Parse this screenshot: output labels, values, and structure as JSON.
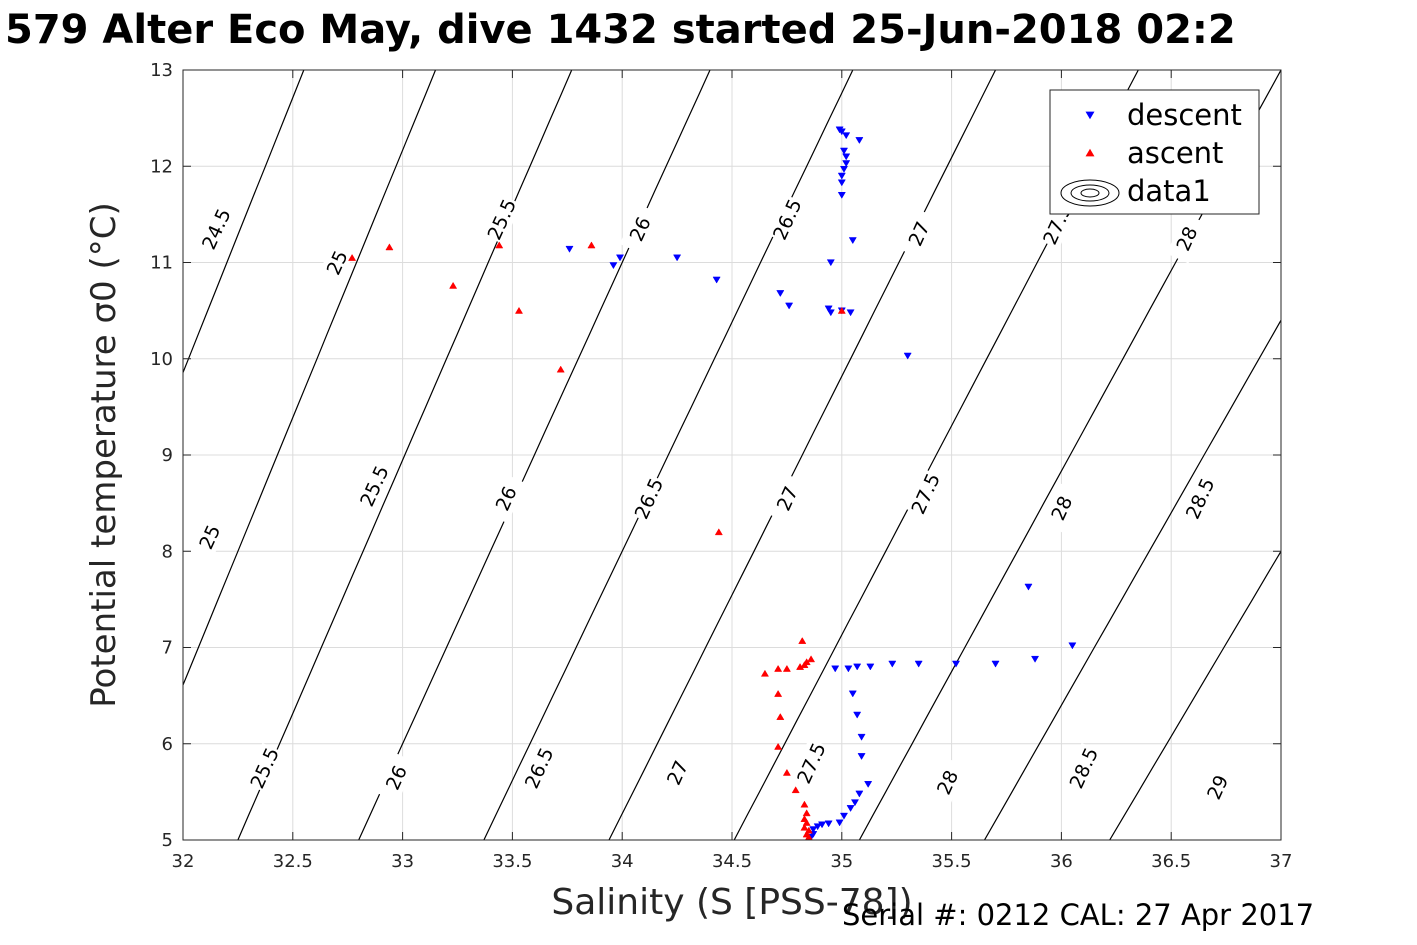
{
  "header": {
    "title": "579 Alter Eco May, dive 1432 started 25-Jun-2018 02:2"
  },
  "footer": {
    "serial": "Serial #: 0212  CAL: 27 Apr 2017"
  },
  "colors": {
    "descent": "#0000ff",
    "ascent": "#ff0000",
    "contour": "#000000",
    "grid": "#dcdcdc",
    "axis": "#262626"
  },
  "chart_data": {
    "type": "scatter",
    "title": "579 Alter Eco May, dive 1432 started 25-Jun-2018 02:2",
    "xlabel": "Salinity (S [PSS-78])",
    "ylabel": "Potential temperature σ0 (°C)",
    "xlim": [
      32,
      37
    ],
    "ylim": [
      5,
      13
    ],
    "xticks": [
      32,
      32.5,
      33,
      33.5,
      34,
      34.5,
      35,
      35.5,
      36,
      36.5,
      37
    ],
    "xtick_labels": [
      "32",
      "32.5",
      "33",
      "33.5",
      "34",
      "34.5",
      "35",
      "35.5",
      "36",
      "36.5",
      "37"
    ],
    "yticks": [
      5,
      6,
      7,
      8,
      9,
      10,
      11,
      12,
      13
    ],
    "ytick_labels": [
      "5",
      "6",
      "7",
      "8",
      "9",
      "10",
      "11",
      "12",
      "13"
    ],
    "grid": true,
    "legend": {
      "placement": "top-right",
      "entries": [
        {
          "name": "descent",
          "marker": "triangle-down",
          "color": "#0000ff"
        },
        {
          "name": "ascent",
          "marker": "triangle-up",
          "color": "#ff0000"
        },
        {
          "name": "data1",
          "marker": "contour",
          "color": "#000000"
        }
      ]
    },
    "contours": [
      {
        "level": 24.5,
        "s_at_t13": 32.55,
        "slope": 0.175
      },
      {
        "level": 25,
        "s_at_t13": 33.15,
        "slope": 0.18
      },
      {
        "level": 25.5,
        "s_at_t13": 33.77,
        "slope": 0.19
      },
      {
        "level": 26,
        "s_at_t13": 34.4,
        "slope": 0.2
      },
      {
        "level": 26.5,
        "s_at_t13": 35.05,
        "slope": 0.21
      },
      {
        "level": 27,
        "s_at_t13": 35.7,
        "slope": 0.22
      },
      {
        "level": 27.5,
        "s_at_t13": 36.35,
        "slope": 0.23
      },
      {
        "level": 28,
        "s_at_t13": 37.0,
        "slope": 0.24
      },
      {
        "level": 28.5,
        "s_at_t13": 37.65,
        "slope": 0.25
      },
      {
        "level": 29,
        "s_at_t13": 38.3,
        "slope": 0.26
      }
    ],
    "contour_labels": [
      {
        "text": "24.5",
        "x": 32.15,
        "y": 11.35
      },
      {
        "text": "25",
        "x": 32.7,
        "y": 11.0
      },
      {
        "text": "25.5",
        "x": 33.45,
        "y": 11.45
      },
      {
        "text": "26",
        "x": 34.08,
        "y": 11.35
      },
      {
        "text": "26.5",
        "x": 34.75,
        "y": 11.45
      },
      {
        "text": "27",
        "x": 35.35,
        "y": 11.3
      },
      {
        "text": "27.5",
        "x": 35.98,
        "y": 11.4
      },
      {
        "text": "28",
        "x": 36.57,
        "y": 11.25
      },
      {
        "text": "25",
        "x": 32.12,
        "y": 8.15
      },
      {
        "text": "25.5",
        "x": 32.87,
        "y": 8.68
      },
      {
        "text": "26",
        "x": 33.47,
        "y": 8.55
      },
      {
        "text": "26.5",
        "x": 34.12,
        "y": 8.55
      },
      {
        "text": "27",
        "x": 34.75,
        "y": 8.55
      },
      {
        "text": "27.5",
        "x": 35.38,
        "y": 8.6
      },
      {
        "text": "28",
        "x": 36.0,
        "y": 8.45
      },
      {
        "text": "28.5",
        "x": 36.63,
        "y": 8.55
      },
      {
        "text": "25.5",
        "x": 32.37,
        "y": 5.75
      },
      {
        "text": "26",
        "x": 32.97,
        "y": 5.65
      },
      {
        "text": "26.5",
        "x": 33.62,
        "y": 5.75
      },
      {
        "text": "27",
        "x": 34.25,
        "y": 5.7
      },
      {
        "text": "27.5",
        "x": 34.86,
        "y": 5.8
      },
      {
        "text": "28",
        "x": 35.48,
        "y": 5.6
      },
      {
        "text": "28.5",
        "x": 36.1,
        "y": 5.75
      },
      {
        "text": "29",
        "x": 36.71,
        "y": 5.55
      }
    ],
    "series": [
      {
        "name": "descent",
        "marker": "triangle-down",
        "color": "#0000ff",
        "points": [
          [
            34.99,
            12.38
          ],
          [
            35.0,
            12.36
          ],
          [
            35.02,
            12.32
          ],
          [
            35.08,
            12.27
          ],
          [
            35.01,
            12.16
          ],
          [
            35.02,
            12.1
          ],
          [
            35.02,
            12.03
          ],
          [
            35.01,
            11.97
          ],
          [
            35.0,
            11.9
          ],
          [
            35.0,
            11.83
          ],
          [
            35.0,
            11.7
          ],
          [
            35.05,
            11.23
          ],
          [
            34.95,
            11.0
          ],
          [
            35.0,
            10.5
          ],
          [
            35.3,
            10.03
          ],
          [
            34.94,
            10.52
          ],
          [
            34.95,
            10.48
          ],
          [
            35.04,
            10.48
          ],
          [
            34.76,
            10.55
          ],
          [
            34.72,
            10.68
          ],
          [
            34.43,
            10.82
          ],
          [
            34.25,
            11.05
          ],
          [
            33.99,
            11.05
          ],
          [
            33.96,
            10.97
          ],
          [
            33.76,
            11.14
          ],
          [
            35.85,
            7.63
          ],
          [
            36.05,
            7.02
          ],
          [
            35.88,
            6.88
          ],
          [
            35.7,
            6.83
          ],
          [
            35.52,
            6.83
          ],
          [
            35.35,
            6.83
          ],
          [
            35.23,
            6.83
          ],
          [
            35.13,
            6.8
          ],
          [
            35.07,
            6.8
          ],
          [
            35.03,
            6.78
          ],
          [
            34.97,
            6.78
          ],
          [
            35.05,
            6.52
          ],
          [
            35.07,
            6.3
          ],
          [
            35.09,
            6.07
          ],
          [
            35.09,
            5.87
          ],
          [
            35.12,
            5.58
          ],
          [
            35.08,
            5.48
          ],
          [
            35.06,
            5.39
          ],
          [
            35.04,
            5.33
          ],
          [
            35.01,
            5.25
          ],
          [
            34.99,
            5.18
          ],
          [
            34.94,
            5.17
          ],
          [
            34.91,
            5.16
          ],
          [
            34.89,
            5.14
          ],
          [
            34.87,
            5.11
          ],
          [
            34.87,
            5.06
          ],
          [
            34.86,
            5.03
          ]
        ]
      },
      {
        "name": "ascent",
        "marker": "triangle-up",
        "color": "#ff0000",
        "points": [
          [
            32.77,
            11.05
          ],
          [
            32.94,
            11.16
          ],
          [
            33.23,
            10.76
          ],
          [
            33.44,
            11.18
          ],
          [
            33.53,
            10.5
          ],
          [
            33.72,
            9.89
          ],
          [
            33.86,
            11.18
          ],
          [
            35.0,
            10.5
          ],
          [
            34.44,
            8.2
          ],
          [
            34.82,
            7.07
          ],
          [
            34.86,
            6.88
          ],
          [
            34.84,
            6.85
          ],
          [
            34.83,
            6.82
          ],
          [
            34.81,
            6.8
          ],
          [
            34.75,
            6.78
          ],
          [
            34.71,
            6.78
          ],
          [
            34.65,
            6.73
          ],
          [
            34.71,
            6.52
          ],
          [
            34.72,
            6.28
          ],
          [
            34.71,
            5.97
          ],
          [
            34.75,
            5.7
          ],
          [
            34.79,
            5.52
          ],
          [
            34.83,
            5.37
          ],
          [
            34.84,
            5.28
          ],
          [
            34.83,
            5.22
          ],
          [
            34.84,
            5.18
          ],
          [
            34.83,
            5.13
          ],
          [
            34.85,
            5.1
          ],
          [
            34.84,
            5.06
          ],
          [
            34.85,
            5.03
          ]
        ]
      }
    ]
  }
}
